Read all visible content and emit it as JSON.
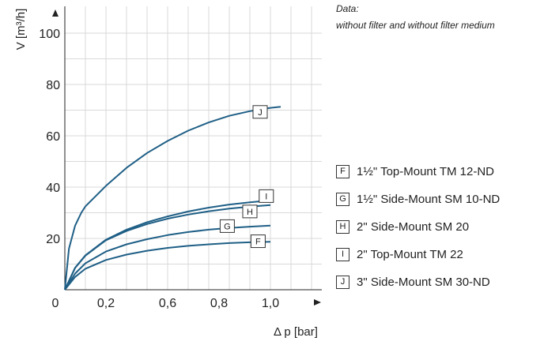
{
  "chart_data": {
    "type": "line",
    "xlabel": "Δ p [bar]",
    "ylabel": "V [m³/h]",
    "x_tick_labels": [
      "0",
      "0,2",
      "0,6",
      "0,8",
      "1,0"
    ],
    "y_tick_labels": [
      "20",
      "40",
      "60",
      "80",
      "100"
    ],
    "xlim": [
      0,
      1.2
    ],
    "ylim": [
      0,
      105
    ],
    "grid": true,
    "series": [
      {
        "name": "1½\" Top-Mount TM 12-ND",
        "marker": "F",
        "x": [
          0,
          0.05,
          0.1,
          0.2,
          0.3,
          0.4,
          0.5,
          0.6,
          0.7,
          0.8,
          0.9,
          1.0
        ],
        "y": [
          0,
          5,
          8.2,
          11.6,
          13.7,
          15.2,
          16.3,
          17.1,
          17.7,
          18.2,
          18.5,
          18.7
        ]
      },
      {
        "name": "1½\" Side-Mount SM 10-ND",
        "marker": "G",
        "x": [
          0,
          0.05,
          0.1,
          0.2,
          0.3,
          0.4,
          0.5,
          0.6,
          0.7,
          0.8,
          0.9,
          1.0
        ],
        "y": [
          0,
          6.3,
          10.3,
          14.9,
          17.7,
          19.7,
          21.3,
          22.5,
          23.4,
          24.1,
          24.6,
          25.0
        ]
      },
      {
        "name": "2\" Side-Mount SM 20",
        "marker": "H",
        "x": [
          0,
          0.05,
          0.1,
          0.2,
          0.3,
          0.4,
          0.5,
          0.6,
          0.7,
          0.8,
          0.9,
          1.0
        ],
        "y": [
          0,
          8.5,
          13.3,
          19.3,
          22.9,
          25.6,
          27.7,
          29.3,
          30.6,
          31.6,
          32.4,
          33.0
        ]
      },
      {
        "name": "2\" Top-Mount TM 22",
        "marker": "I",
        "x": [
          0,
          0.05,
          0.1,
          0.2,
          0.3,
          0.4,
          0.5,
          0.6,
          0.7,
          0.8,
          0.9,
          1.0
        ],
        "y": [
          0,
          8.6,
          13.4,
          19.5,
          23.4,
          26.3,
          28.6,
          30.5,
          32.0,
          33.2,
          34.1,
          34.8
        ]
      },
      {
        "name": "3\" Side-Mount SM 30-ND",
        "marker": "J",
        "x": [
          0,
          0.02,
          0.05,
          0.08,
          0.1,
          0.15,
          0.2,
          0.3,
          0.4,
          0.5,
          0.6,
          0.7,
          0.8,
          0.9,
          1.0,
          1.05
        ],
        "y": [
          0,
          16,
          25,
          30,
          32.5,
          36.5,
          40.5,
          47.5,
          53.3,
          58,
          62,
          65.2,
          67.8,
          69.6,
          70.9,
          71.3
        ]
      }
    ]
  },
  "note": {
    "line1": "Data:",
    "line2": "without filter and without filter medium"
  },
  "colors": {
    "line": "#1f5f86",
    "grid": "#d9d9d9",
    "axis": "#222222"
  }
}
